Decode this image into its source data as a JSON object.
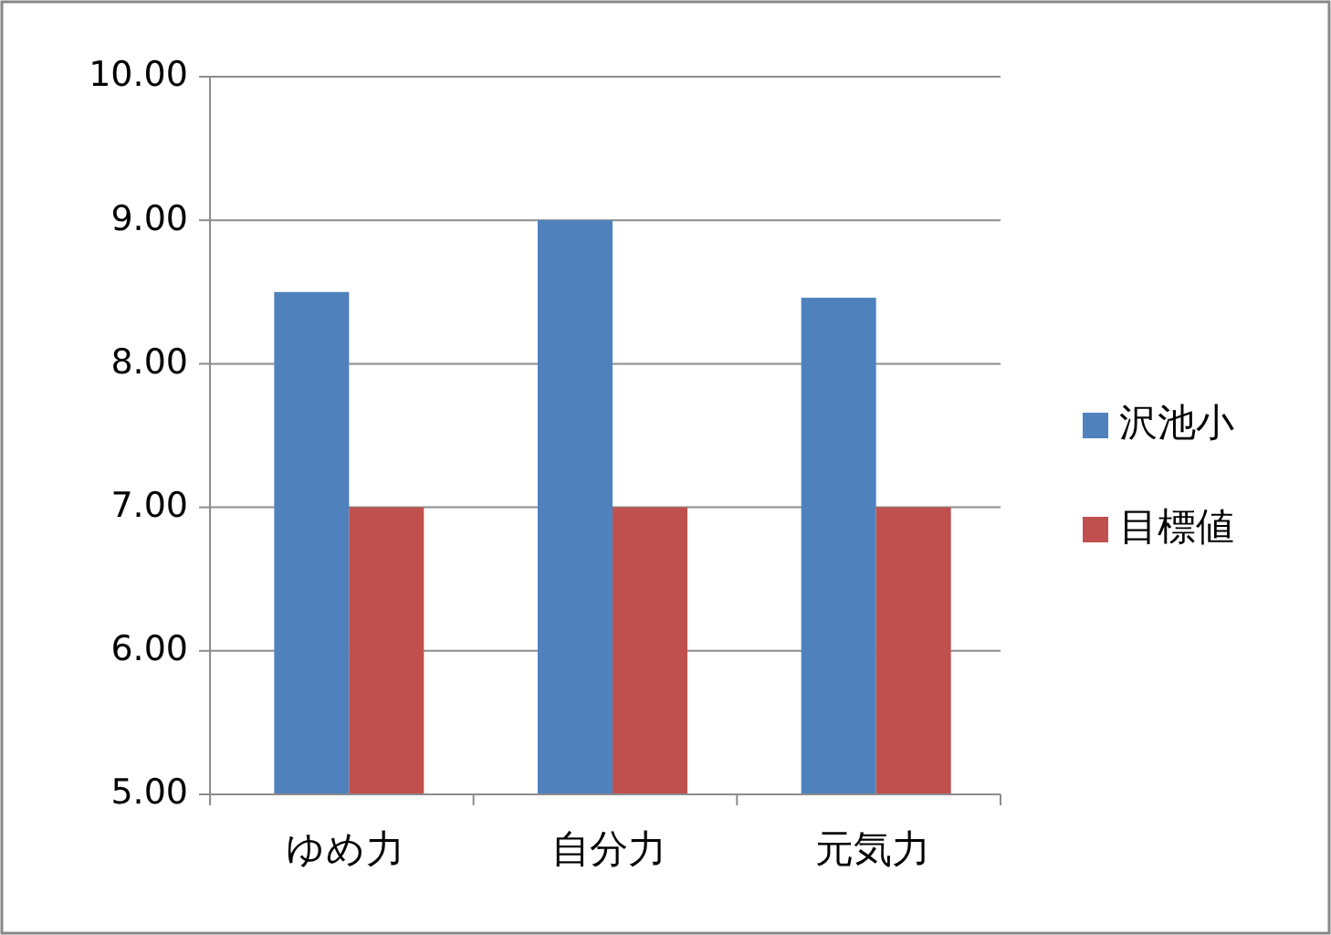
{
  "chart_data": {
    "type": "bar",
    "categories": [
      "ゆめ力",
      "自分力",
      "元気力"
    ],
    "series": [
      {
        "name": "沢池小",
        "color": "#4f81bd",
        "values": [
          8.5,
          9.0,
          8.46
        ]
      },
      {
        "name": "目標値",
        "color": "#c0504d",
        "values": [
          7,
          7,
          7
        ]
      }
    ],
    "ylim": [
      5,
      10
    ],
    "yticks": [
      {
        "value": 5,
        "label": "5.00"
      },
      {
        "value": 6,
        "label": "6.00"
      },
      {
        "value": 7,
        "label": "7.00"
      },
      {
        "value": 8,
        "label": "8.00"
      },
      {
        "value": 9,
        "label": "9.00"
      },
      {
        "value": 10,
        "label": "10.00"
      }
    ],
    "grid": "y",
    "legend": "right"
  }
}
